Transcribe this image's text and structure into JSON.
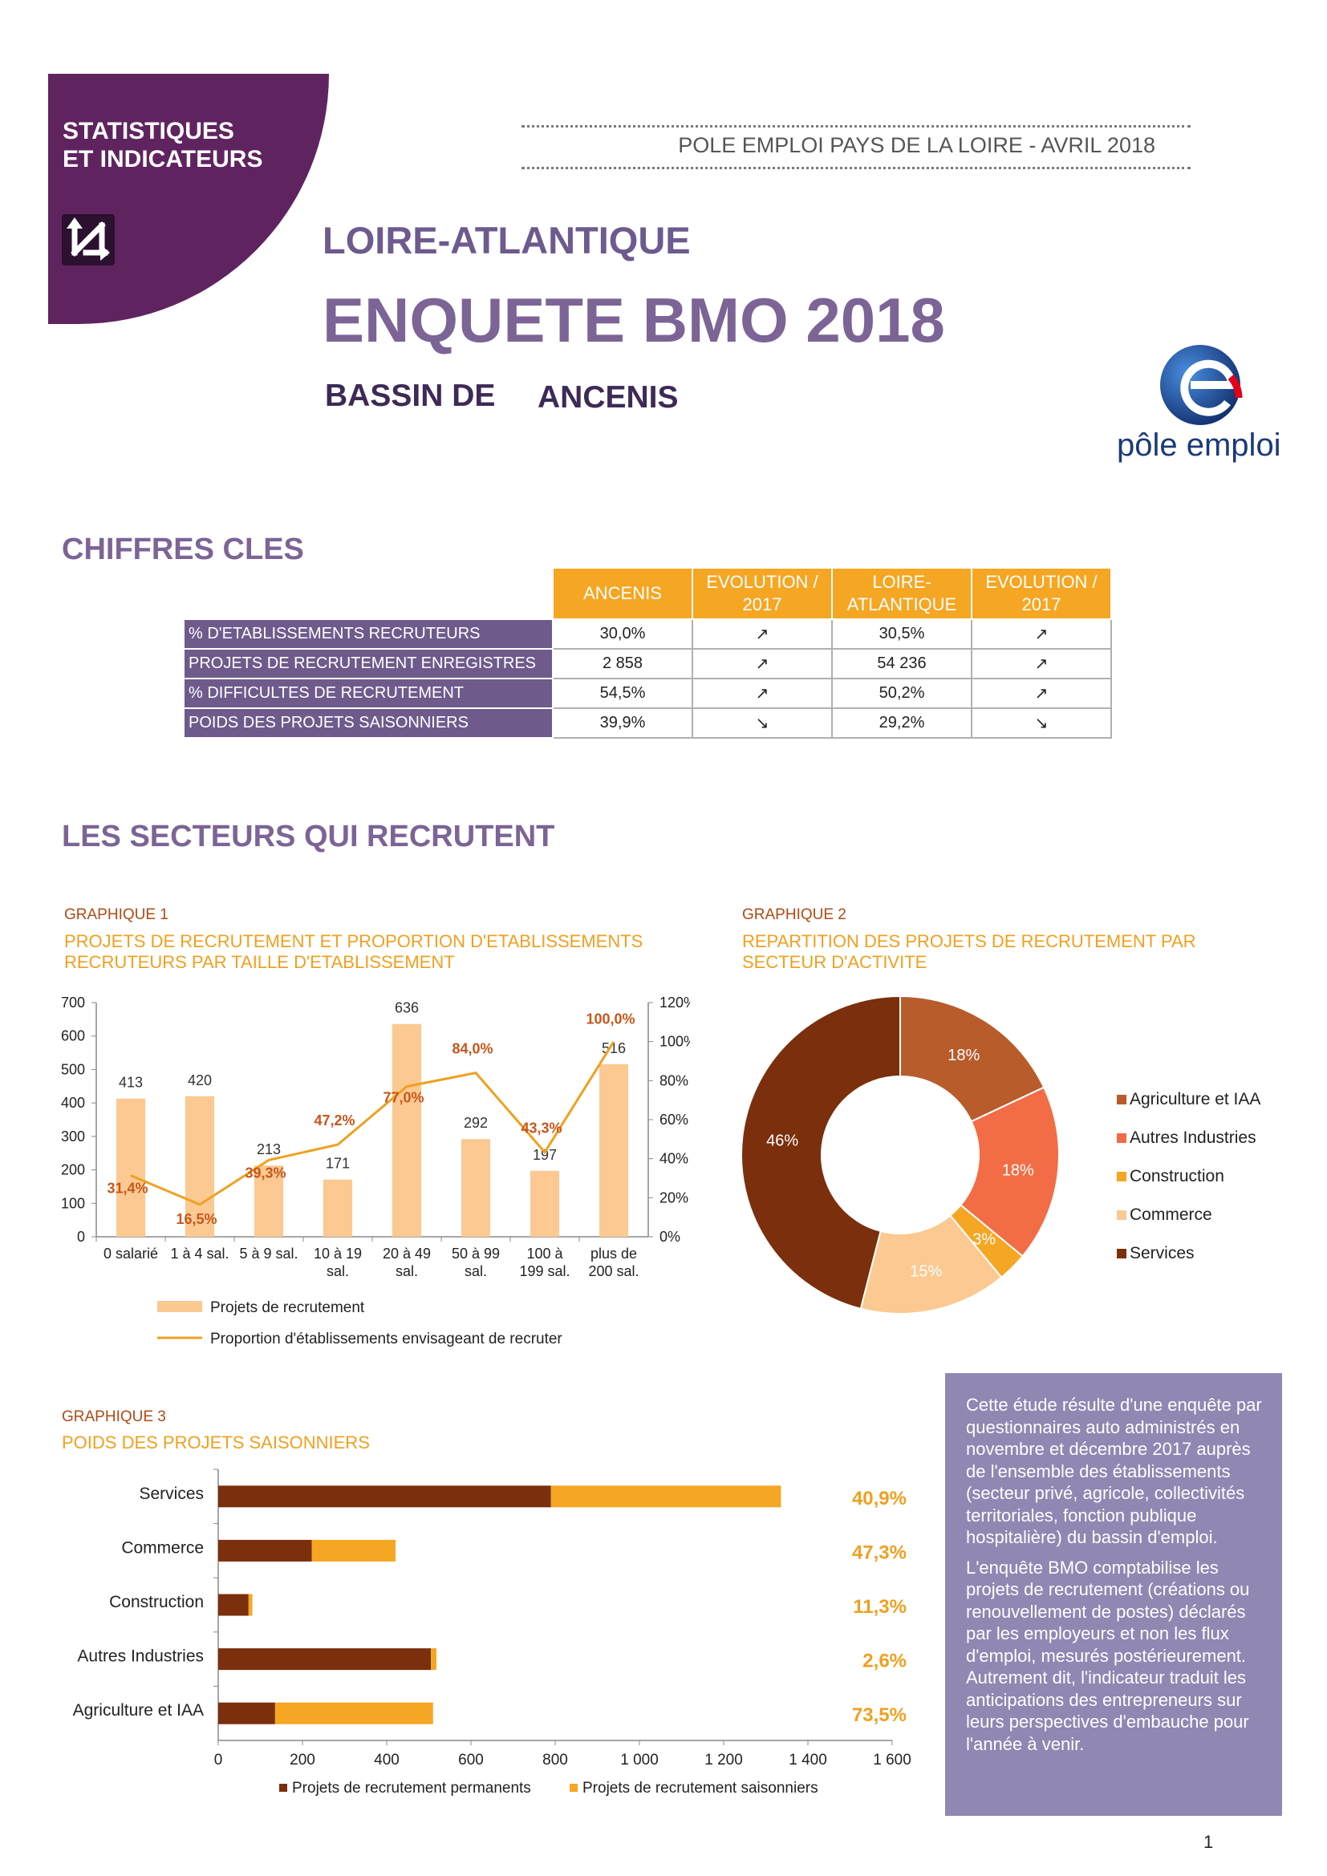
{
  "header": {
    "banner_line1": "STATISTIQUES",
    "banner_line2": "ET INDICATEURS",
    "source": "POLE EMPLOI PAYS DE LA LOIRE - AVRIL 2018",
    "department": "LOIRE-ATLANTIQUE",
    "title": "ENQUETE BMO 2018",
    "bassin_label": "BASSIN DE",
    "bassin_name": "ANCENIS",
    "logo_text": "pôle emploi"
  },
  "key_figures": {
    "section_title": "CHIFFRES CLES",
    "columns": [
      "ANCENIS",
      "EVOLUTION / 2017",
      "LOIRE-ATLANTIQUE",
      "EVOLUTION / 2017"
    ],
    "rows": [
      {
        "label": "% D'ETABLISSEMENTS RECRUTEURS",
        "local": "30,0%",
        "local_trend": "↗",
        "dept": "30,5%",
        "dept_trend": "↗"
      },
      {
        "label": "PROJETS DE RECRUTEMENT ENREGISTRES",
        "local": "2 858",
        "local_trend": "↗",
        "dept": "54 236",
        "dept_trend": "↗"
      },
      {
        "label": "% DIFFICULTES DE RECRUTEMENT",
        "local": "54,5%",
        "local_trend": "↗",
        "dept": "50,2%",
        "dept_trend": "↗"
      },
      {
        "label": "POIDS DES PROJETS SAISONNIERS",
        "local": "39,9%",
        "local_trend": "↘",
        "dept": "29,2%",
        "dept_trend": "↘"
      }
    ]
  },
  "sectors": {
    "section_title": "LES SECTEURS QUI RECRUTENT"
  },
  "graph1": {
    "label": "GRAPHIQUE 1",
    "title_line1": "PROJETS DE RECRUTEMENT ET PROPORTION D'ETABLISSEMENTS",
    "title_line2": "RECRUTEURS PAR TAILLE D'ETABLISSEMENT"
  },
  "graph2": {
    "label": "GRAPHIQUE 2",
    "title_line1": "REPARTITION DES PROJETS DE RECRUTEMENT PAR",
    "title_line2": "SECTEUR D'ACTIVITE"
  },
  "graph3": {
    "label": "GRAPHIQUE 3",
    "title": "POIDS DES PROJETS SAISONNIERS"
  },
  "note": {
    "p1": "Cette étude résulte d'une enquête par questionnaires auto administrés en novembre et décembre 2017 auprès de l'ensemble des établissements (secteur privé, agricole, collectivités territoriales, fonction publique hospitalière) du bassin d'emploi.",
    "p2": "L'enquête BMO comptabilise les projets de recrutement (créations ou renouvellement de postes) déclarés par les employeurs et non les flux d'emploi, mesurés postérieurement. Autrement dit, l'indicateur traduit les anticipations des entrepreneurs sur leurs perspectives d'embauche pour l'année à venir."
  },
  "page_number": "1",
  "colors": {
    "purple": "#6e5b8c",
    "orange": "#f5a623",
    "bar_light": "#fbc991",
    "line_orange": "#f0a020",
    "brown": "#7b2f0c"
  },
  "chart_data": [
    {
      "type": "bar",
      "categories": [
        [
          "0 salarié"
        ],
        [
          "1 à 4 sal."
        ],
        [
          "5 à 9 sal."
        ],
        [
          "10 à 19",
          "sal."
        ],
        [
          "20 à 49",
          "sal."
        ],
        [
          "50 à 99",
          "sal."
        ],
        [
          "100 à",
          "199 sal."
        ],
        [
          "plus de",
          "200 sal."
        ]
      ],
      "series": [
        {
          "name": "Projets de recrutement",
          "kind": "bar",
          "axis": "left",
          "values": [
            413,
            420,
            213,
            171,
            636,
            292,
            197,
            516
          ],
          "labels": [
            "413",
            "420",
            "213",
            "171",
            "636",
            "292",
            "197",
            "516"
          ]
        },
        {
          "name": "Proportion d'établissements envisageant de recruter",
          "kind": "line",
          "axis": "right",
          "values": [
            31.4,
            16.5,
            39.3,
            47.2,
            77.0,
            84.0,
            43.3,
            100.0
          ],
          "labels": [
            "31,4%",
            "16,5%",
            "39,3%",
            "47,2%",
            "77,0%",
            "84,0%",
            "43,3%",
            "100,0%"
          ]
        }
      ],
      "ylim_left": [
        0,
        700
      ],
      "yticks_left": [
        "0",
        "100",
        "200",
        "300",
        "400",
        "500",
        "600",
        "700"
      ],
      "ylim_right": [
        0,
        120
      ],
      "yticks_right": [
        "0%",
        "20%",
        "40%",
        "60%",
        "80%",
        "100%",
        "120%"
      ],
      "legend_position": "bottom"
    },
    {
      "type": "pie",
      "donut": true,
      "slices": [
        {
          "name": "Agriculture et IAA",
          "value": 18,
          "label": "18%",
          "color": "#b85c2c"
        },
        {
          "name": "Autres Industries",
          "value": 18,
          "label": "18%",
          "color": "#f26d45"
        },
        {
          "name": "Construction",
          "value": 3,
          "label": "3%",
          "color": "#f5a623"
        },
        {
          "name": "Commerce",
          "value": 15,
          "label": "15%",
          "color": "#fbc991"
        },
        {
          "name": "Services",
          "value": 46,
          "label": "46%",
          "color": "#7b2f0c"
        }
      ],
      "legend_position": "right"
    },
    {
      "type": "bar",
      "orientation": "horizontal",
      "stacked": true,
      "categories": [
        "Services",
        "Commerce",
        "Construction",
        "Autres Industries",
        "Agriculture et IAA"
      ],
      "series": [
        {
          "name": "Projets de recrutement permanents",
          "values": [
            790,
            222,
            72,
            505,
            135
          ],
          "color": "#7b2f0c"
        },
        {
          "name": "Projets de recrutement saisonniers",
          "values": [
            546,
            199,
            9,
            13,
            375
          ],
          "color": "#f5a623"
        }
      ],
      "shares": [
        "40,9%",
        "47,3%",
        "11,3%",
        "2,6%",
        "73,5%"
      ],
      "xlim": [
        0,
        1600
      ],
      "xticks": [
        "0",
        "200",
        "400",
        "600",
        "800",
        "1 000",
        "1 200",
        "1 400",
        "1 600"
      ],
      "legend_position": "bottom"
    }
  ]
}
